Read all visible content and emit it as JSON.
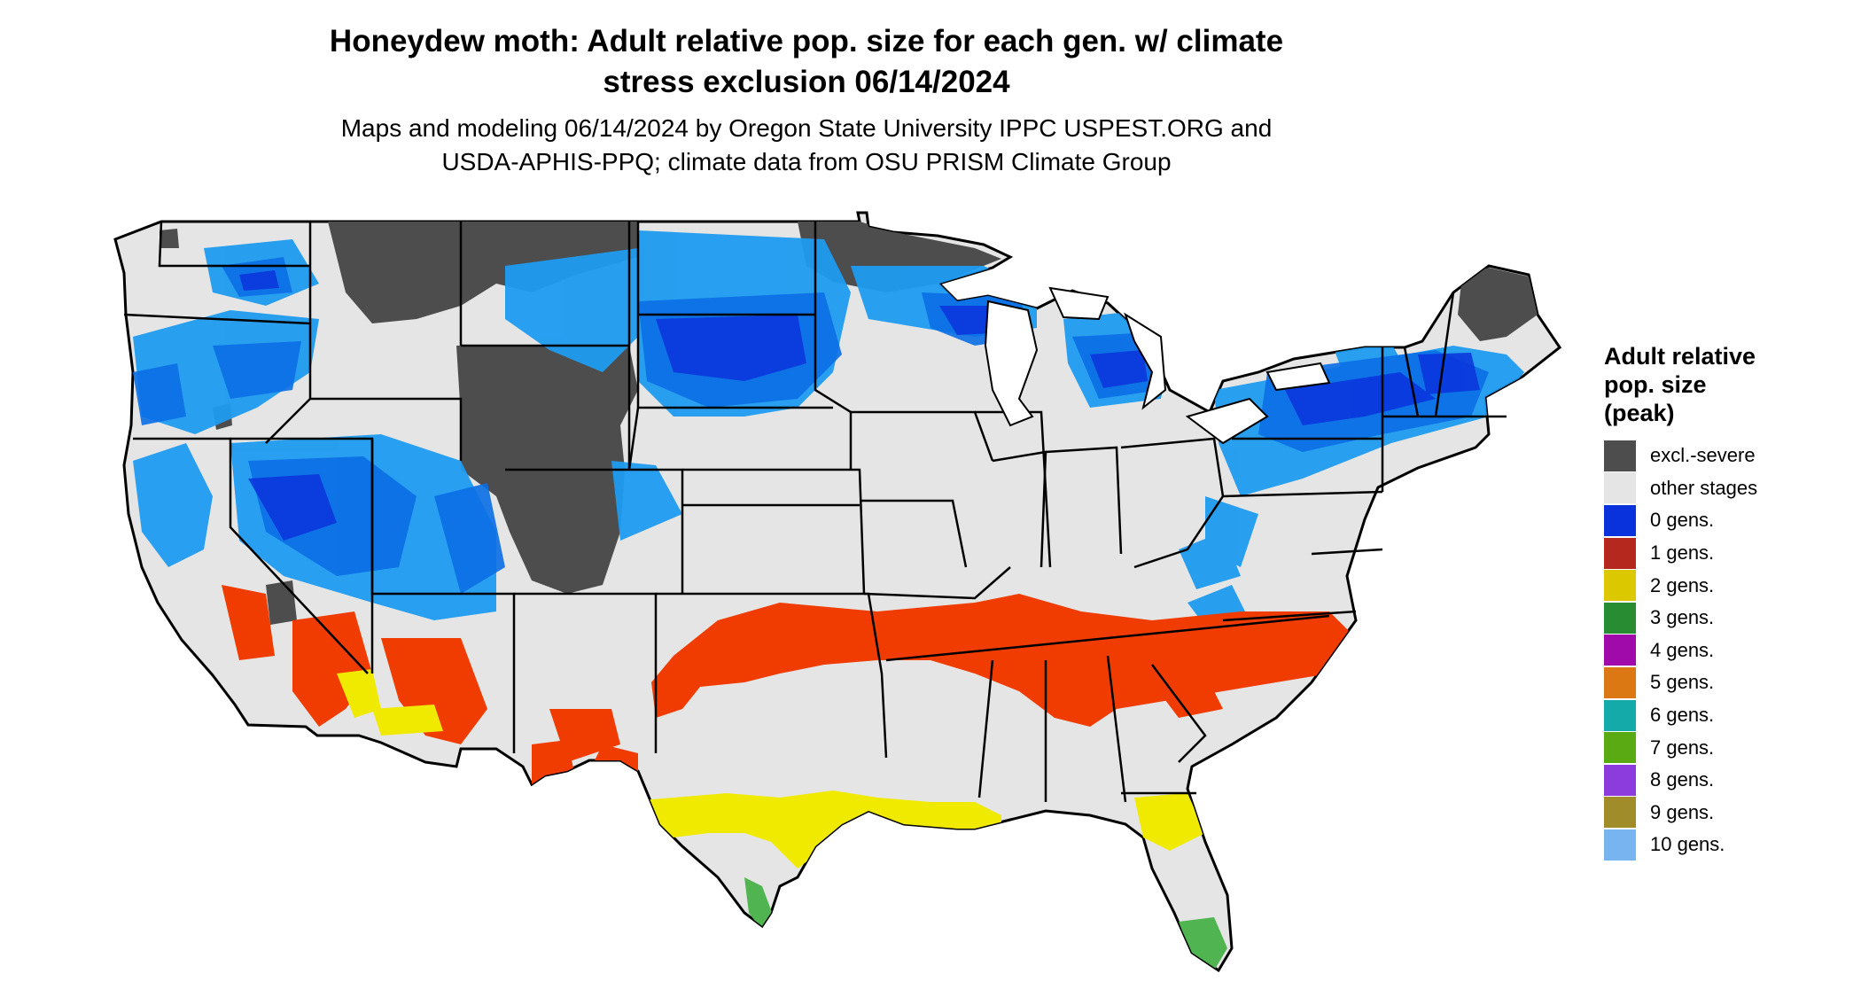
{
  "title": {
    "line1": "Honeydew moth: Adult relative pop. size for each gen. w/ climate",
    "line2": "stress exclusion 06/14/2024"
  },
  "subtitle": {
    "line1": "Maps and modeling 06/14/2024 by Oregon State University IPPC USPEST.ORG and",
    "line2": "USDA-APHIS-PPQ; climate data from OSU PRISM Climate Group"
  },
  "legend": {
    "title_line1": "Adult relative",
    "title_line2": "pop. size",
    "title_line3": "(peak)",
    "items": [
      {
        "label": "excl.-severe",
        "color": "#4d4d4d"
      },
      {
        "label": "other stages",
        "color": "#e5e5e5"
      },
      {
        "label": "0 gens.",
        "color": "#0a32dc"
      },
      {
        "label": "1 gens.",
        "color": "#b4281e"
      },
      {
        "label": "2 gens.",
        "color": "#dcc800"
      },
      {
        "label": "3 gens.",
        "color": "#288c32"
      },
      {
        "label": "4 gens.",
        "color": "#a00aaa"
      },
      {
        "label": "5 gens.",
        "color": "#dc7814"
      },
      {
        "label": "6 gens.",
        "color": "#14aaaa"
      },
      {
        "label": "7 gens.",
        "color": "#5aaa14"
      },
      {
        "label": "8 gens.",
        "color": "#8c3cdc"
      },
      {
        "label": "9 gens.",
        "color": "#a08c28"
      },
      {
        "label": "10 gens.",
        "color": "#78b4f0"
      }
    ]
  },
  "map_colors": {
    "excluded": "#4d4d4d",
    "other": "#e5e5e5",
    "blue_light": "#1e9bf0",
    "blue_mid": "#0a6ee6",
    "blue_dark": "#0a32dc",
    "orange": "#f03c00",
    "yellow": "#f0ea00",
    "green": "#50b450",
    "border": "#000000"
  }
}
